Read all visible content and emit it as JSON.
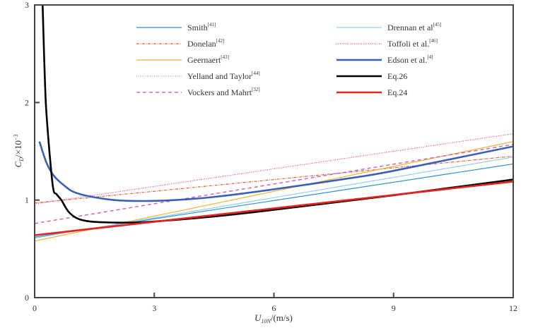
{
  "chart_data": {
    "type": "line",
    "title": "",
    "xlabel": {
      "main": "U",
      "sub": "10N",
      "rest": "/(m/s)"
    },
    "ylabel": {
      "main": "C",
      "sub": "D",
      "rest": "/×10",
      "sup": "−3"
    },
    "xlim": [
      0,
      12
    ],
    "ylim": [
      0,
      3
    ],
    "xticks": [
      0,
      3,
      6,
      9,
      12
    ],
    "yticks": [
      0,
      1,
      2,
      3
    ],
    "grid": false,
    "legend_placement": "top",
    "series": [
      {
        "name": "Smith",
        "ref": "[41]",
        "color": "#2e8fd6",
        "style": "solid",
        "x": [
          0,
          12
        ],
        "y": [
          0.62,
          1.37
        ]
      },
      {
        "name": "Donelan",
        "ref": "[42]",
        "color": "#e8603a",
        "style": "dashdot",
        "x": [
          0,
          12
        ],
        "y": [
          0.97,
          1.45
        ]
      },
      {
        "name": "Geernaert",
        "ref": "[43]",
        "color": "#f5b030",
        "style": "solid",
        "x": [
          0,
          12
        ],
        "y": [
          0.58,
          1.6
        ]
      },
      {
        "name": "Yelland and Taylor",
        "ref": "[44]",
        "color": "#d790d0",
        "style": "dotted",
        "x": [],
        "y": []
      },
      {
        "name": "Vockers and Mahrt",
        "ref": "[32]",
        "color": "#c868c0",
        "style": "dashed",
        "x": [
          0,
          12
        ],
        "y": [
          0.76,
          1.57
        ]
      },
      {
        "name": "Drennan et al",
        "ref": "[45]",
        "color": "#8fd0ec",
        "style": "solid",
        "x": [
          0,
          12
        ],
        "y": [
          0.61,
          1.44
        ]
      },
      {
        "name": "Toffoli et al.",
        "ref": "[46]",
        "color": "#e0507a",
        "style": "dotted",
        "x": [
          0,
          12
        ],
        "y": [
          0.96,
          1.68
        ]
      },
      {
        "name": "Edson et al.",
        "ref": "[4]",
        "color": "#3a5fb8",
        "style": "thick",
        "x": [
          0.12,
          0.3,
          0.5,
          0.8,
          1.0,
          1.35,
          2.0,
          2.7,
          3.5,
          4.45,
          6,
          8,
          9,
          12
        ],
        "y": [
          1.6,
          1.38,
          1.24,
          1.13,
          1.08,
          1.04,
          1.0,
          0.99,
          1.0,
          1.03,
          1.11,
          1.23,
          1.3,
          1.55
        ]
      },
      {
        "name": "Eq.26",
        "ref": "",
        "color": "#000000",
        "style": "thick",
        "x": [
          0.2,
          0.24,
          0.28,
          0.35,
          0.46,
          0.55,
          0.67,
          0.85,
          1.08,
          1.4,
          1.9,
          2.5,
          3,
          4.45,
          6,
          9,
          12
        ],
        "y": [
          3.0,
          2.45,
          2.0,
          1.6,
          1.13,
          1.06,
          1.0,
          0.88,
          0.81,
          0.78,
          0.77,
          0.77,
          0.78,
          0.83,
          0.9,
          1.05,
          1.21
        ]
      },
      {
        "name": "Eq.24",
        "ref": "",
        "color": "#e82020",
        "style": "thick",
        "x": [
          0,
          12
        ],
        "y": [
          0.64,
          1.19
        ]
      }
    ]
  }
}
